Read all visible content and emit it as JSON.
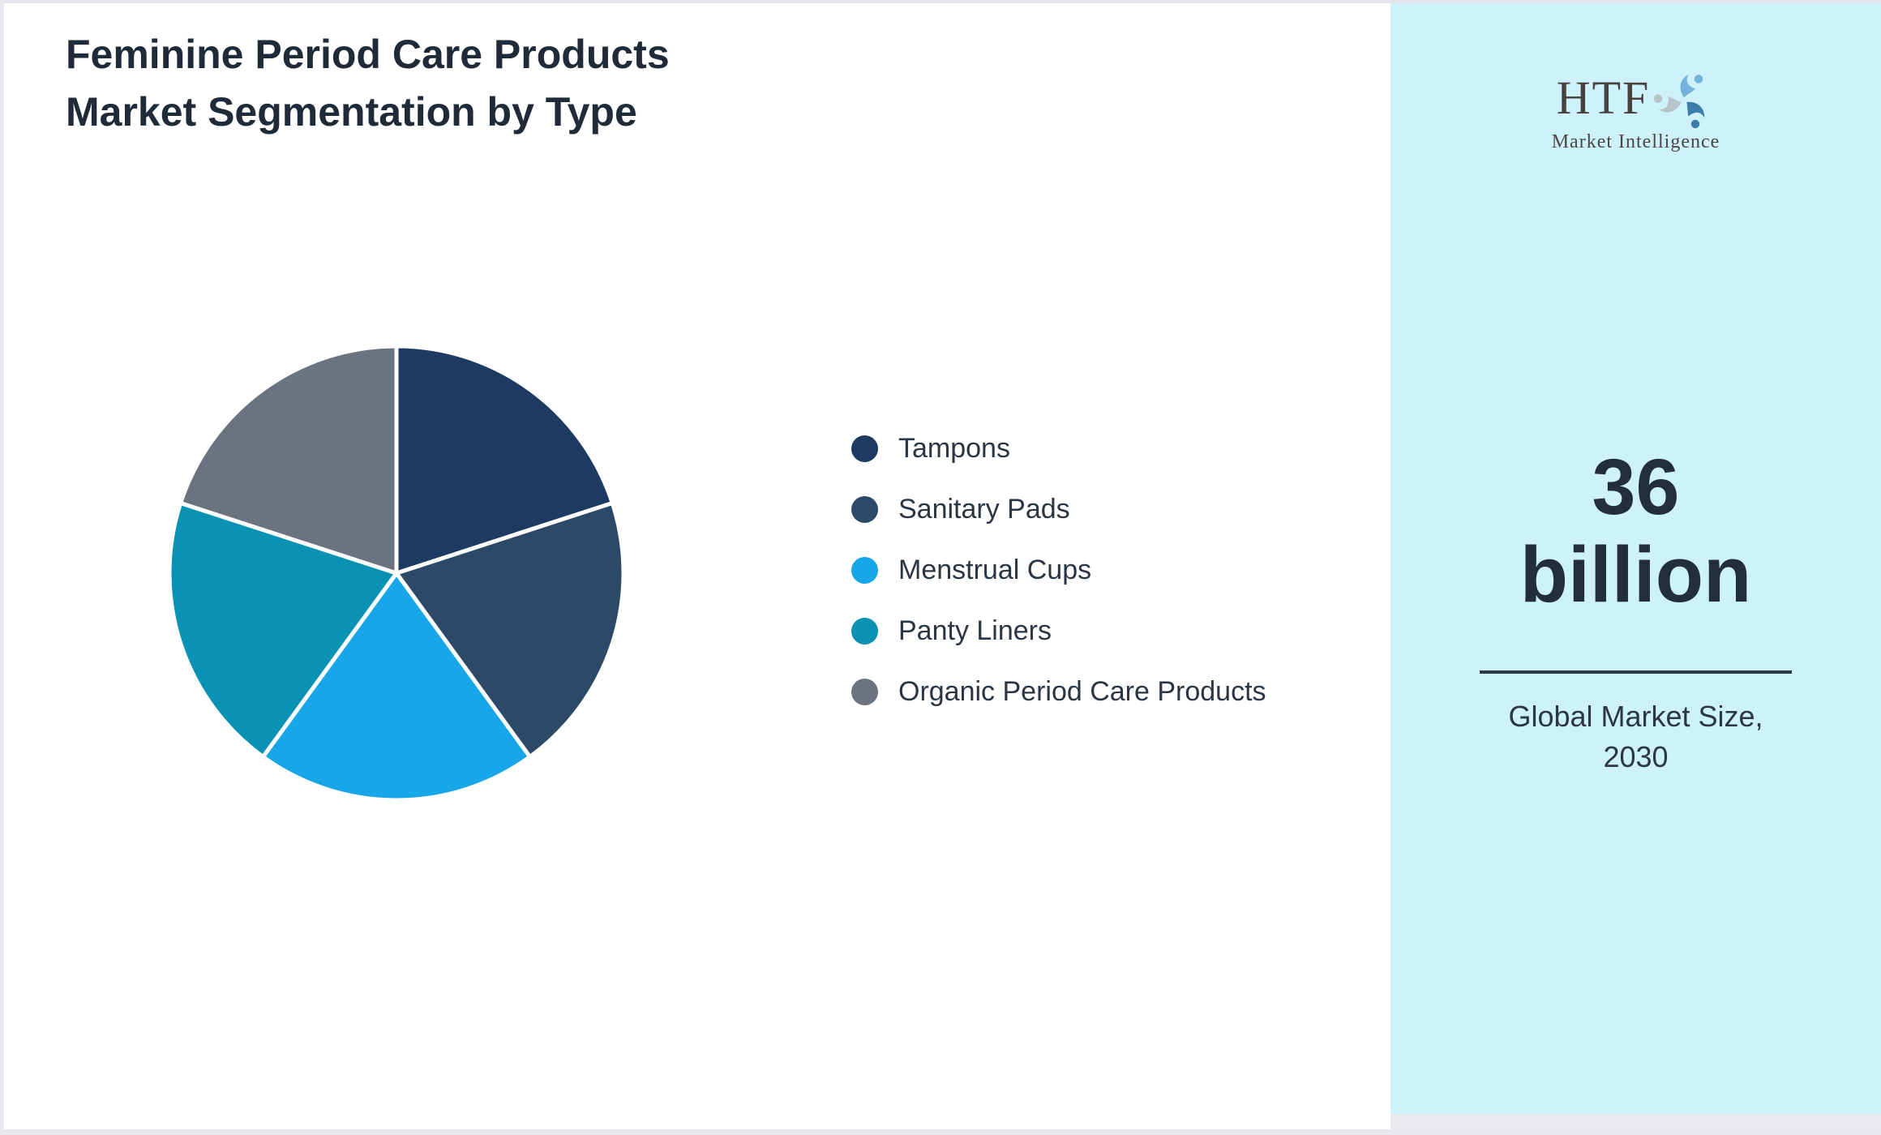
{
  "page": {
    "background": "#ffffff",
    "border_color": "#e5e7ee"
  },
  "header": {
    "title_lines": [
      "Feminine Period Care Products",
      "Market Segmentation by Type"
    ],
    "title_color": "#1f2b38"
  },
  "chart_data": {
    "type": "pie",
    "title": "Feminine Period Care Products Market Segmentation by Type",
    "segments": [
      {
        "label": "Tampons",
        "value": 20,
        "color": "#1c3a62"
      },
      {
        "label": "Sanitary Pads",
        "value": 20,
        "color": "#2c4a68"
      },
      {
        "label": "Menstrual Cups",
        "value": 20,
        "color": "#17a6e8"
      },
      {
        "label": "Panty Liners",
        "value": 20,
        "color": "#0a92b4"
      },
      {
        "label": "Organic Period Care Products",
        "value": 20,
        "color": "#6b7280"
      }
    ],
    "units": "percent (estimated from slice angles, no labels shown)",
    "start_angle_deg": 0,
    "direction": "clockwise",
    "slice_separator_color": "#ffffff",
    "legend_position": "right",
    "data_labels_shown": false
  },
  "sidebar": {
    "background": "#cdf2fa",
    "logo": {
      "name": "HTF",
      "tagline": "Market Intelligence",
      "text_color": "#474240",
      "icon_colors": [
        "#74b3dc",
        "#3e7cab",
        "#b9c3ca"
      ]
    },
    "stat": {
      "value": "36 billion",
      "caption": "Global Market Size, 2030",
      "text_color": "#222e3d",
      "divider_color": "#2b3847"
    }
  }
}
